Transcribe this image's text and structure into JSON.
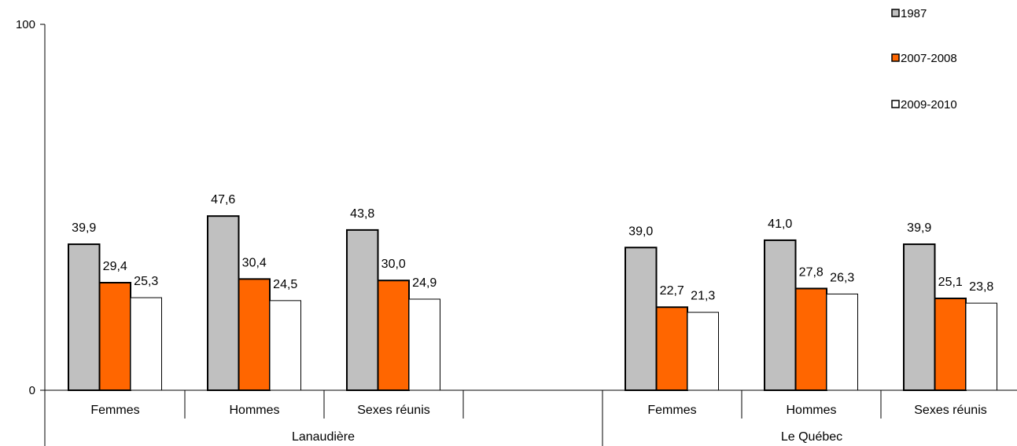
{
  "chart_data": {
    "type": "bar",
    "ylim": [
      0,
      100
    ],
    "yticks": [
      "0",
      "100"
    ],
    "groups": [
      {
        "name": "Lanaudière",
        "categories": [
          "Femmes",
          "Hommes",
          "Sexes réunis"
        ]
      },
      {
        "name": "Le Québec",
        "categories": [
          "Femmes",
          "Hommes",
          "Sexes réunis"
        ]
      }
    ],
    "series": [
      {
        "name": "1987",
        "color": "#c0c0c0",
        "values": [
          39.9,
          47.6,
          43.8,
          39.0,
          41.0,
          39.9
        ],
        "labels": [
          "39,9",
          "47,6",
          "43,8",
          "39,0",
          "41,0",
          "39,9"
        ]
      },
      {
        "name": "2007-2008",
        "color": "#ff6600",
        "values": [
          29.4,
          30.4,
          30.0,
          22.7,
          27.8,
          25.1
        ],
        "labels": [
          "29,4",
          "30,4",
          "30,0",
          "22,7",
          "27,8",
          "25,1"
        ]
      },
      {
        "name": "2009-2010",
        "color": "#ffffff",
        "values": [
          25.3,
          24.5,
          24.9,
          21.3,
          26.3,
          23.8
        ],
        "labels": [
          "25,3",
          "24,5",
          "24,9",
          "21,3",
          "26,3",
          "23,8"
        ]
      }
    ],
    "legend_position": "top-right",
    "grid": false
  }
}
